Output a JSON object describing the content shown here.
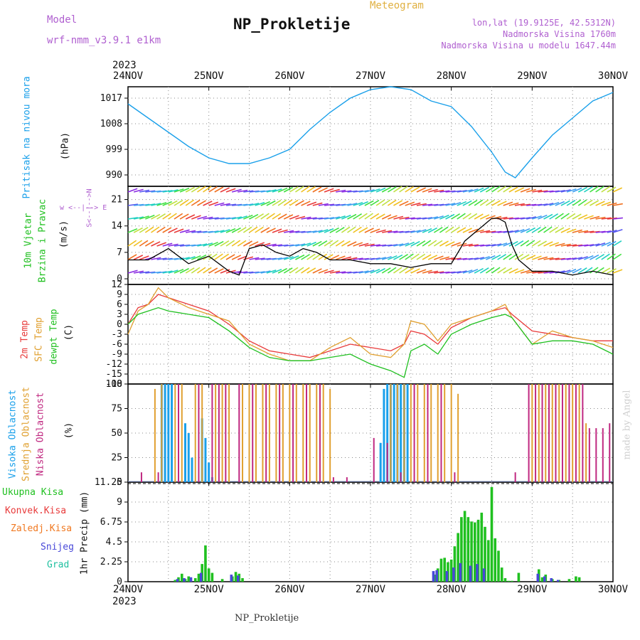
{
  "header": {
    "model_label": "Model",
    "model_version": "wrf-nmm_v3.9.1  e1km",
    "title": "NP_Prokletije",
    "meteogram": "Meteogram",
    "lonlat": "lon,lat (19.9125E, 42.5312N)",
    "elevation": "Nadmorska Visina 1760m",
    "model_elevation": "Nadmorska Visina u modelu 1647.44m"
  },
  "footer": {
    "station": "NP_Prokletije",
    "credit": "made by Angel"
  },
  "time_axis": {
    "year": "2023",
    "labels": [
      "24NOV",
      "25NOV",
      "26NOV",
      "27NOV",
      "28NOV",
      "29NOV",
      "30NOV"
    ]
  },
  "panels": {
    "pressure": {
      "label": "Pritisak na nivou mora",
      "unit": "(hPa)"
    },
    "wind": {
      "label1": "10m Vjetar",
      "label2": "Brzina i Pravac",
      "unit": "(m/s)",
      "compass": "w  <--|--> E",
      "compass_v": "S<--|-->N"
    },
    "temp": {
      "label1": "2m Temp",
      "label2": "SFC Temp",
      "label3": "dewpt Temp",
      "unit": "(C)"
    },
    "cloud": {
      "label1": "Visoka Oblacnost",
      "label2": "Srednja Oblacnost",
      "label3": "Niska Oblacnost",
      "unit": "(%)"
    },
    "precip": {
      "unit": "1hr Precip (mm)",
      "legend": [
        "Ukupna Kisa",
        "Konvek.Kisa",
        "Zaledj.Kisa",
        "Snijeg",
        "Grad"
      ]
    }
  },
  "colors": {
    "pressure": "#1aa0ea",
    "temp2m": "#e83a3a",
    "sfc": "#e0a030",
    "dew": "#20c020",
    "wind_line": "#000000",
    "gust": "#e83a3a",
    "cloud_high": "#1aa0ea",
    "cloud_mid": "#e0a030",
    "cloud_low": "#c02880",
    "rain": "#20c020",
    "conv": "#e83a3a",
    "frz": "#f07820",
    "snow": "#4848d8",
    "grad": "#20c0a0",
    "purple": "#b060d0",
    "orange": "#e0b040"
  },
  "chart_data": [
    {
      "type": "line",
      "title": "Pritisak na nivou mora",
      "ylabel": "(hPa)",
      "ylim": [
        986,
        1021
      ],
      "yticks": [
        990,
        999,
        1008,
        1017
      ],
      "series": [
        {
          "x_hours": [
            0,
            6,
            12,
            18,
            24,
            30,
            36,
            42,
            48,
            54,
            60,
            66,
            72,
            78,
            84,
            90,
            96,
            102,
            108,
            112,
            115,
            120,
            126,
            132,
            138,
            144
          ],
          "values": [
            1015,
            1010,
            1005,
            1000,
            996,
            994,
            994,
            996,
            999,
            1006,
            1012,
            1017,
            1020,
            1021,
            1020,
            1016,
            1014,
            1007,
            998,
            991,
            989,
            996,
            1004,
            1010,
            1016,
            1019
          ]
        }
      ]
    },
    {
      "type": "line",
      "title": "10m Vjetar Brzina i Pravac",
      "ylabel": "(m/s)",
      "ylim": [
        -1.5,
        24.5
      ],
      "yticks": [
        0,
        7,
        14,
        21
      ],
      "series": [
        {
          "x_hours": [
            0,
            6,
            12,
            18,
            24,
            30,
            33,
            36,
            40,
            44,
            48,
            52,
            56,
            60,
            66,
            72,
            78,
            84,
            90,
            96,
            100,
            104,
            108,
            110,
            112,
            114,
            116,
            120,
            126,
            132,
            138,
            144
          ],
          "values": [
            5,
            5,
            8,
            4,
            6,
            2,
            1,
            8,
            9,
            7,
            6,
            8,
            7,
            5,
            5,
            4,
            4,
            3,
            4,
            4,
            10,
            13,
            16,
            16,
            15,
            9,
            5,
            2,
            2,
            1,
            2,
            1
          ]
        }
      ]
    },
    {
      "type": "line",
      "title": "2m Temp / SFC Temp / dewpt Temp",
      "ylabel": "(C)",
      "ylim": [
        -18,
        12
      ],
      "yticks": [
        -18,
        -15,
        -12,
        -9,
        -6,
        -3,
        0,
        3,
        6,
        9,
        12
      ],
      "series": [
        {
          "name": "2m Temp",
          "x_hours": [
            0,
            3,
            6,
            9,
            12,
            18,
            24,
            30,
            36,
            42,
            48,
            54,
            60,
            66,
            72,
            78,
            82,
            84,
            88,
            92,
            96,
            102,
            108,
            112,
            114,
            120,
            126,
            132,
            138,
            144
          ],
          "values": [
            0,
            5,
            6,
            9,
            8,
            6,
            4,
            0,
            -5,
            -8,
            -9,
            -10,
            -8,
            -6,
            -7,
            -8,
            -6,
            -2,
            -3,
            -6,
            -1,
            2,
            4,
            5,
            3,
            -2,
            -3,
            -4,
            -5,
            -5
          ]
        },
        {
          "name": "SFC Temp",
          "x_hours": [
            0,
            3,
            6,
            9,
            12,
            18,
            24,
            30,
            36,
            42,
            48,
            54,
            60,
            66,
            72,
            78,
            82,
            84,
            88,
            92,
            96,
            102,
            108,
            112,
            114,
            120,
            126,
            132,
            138,
            144
          ],
          "values": [
            -3,
            4,
            6,
            11,
            8,
            5,
            3,
            1,
            -6,
            -9,
            -11,
            -11,
            -7,
            -4,
            -9,
            -10,
            -6,
            1,
            0,
            -5,
            0,
            2,
            4,
            6,
            2,
            -6,
            -2,
            -4,
            -5,
            -7
          ]
        },
        {
          "name": "dewpt Temp",
          "x_hours": [
            0,
            3,
            6,
            9,
            12,
            18,
            24,
            30,
            36,
            42,
            48,
            54,
            60,
            66,
            72,
            78,
            82,
            84,
            88,
            92,
            96,
            102,
            108,
            112,
            114,
            120,
            126,
            132,
            138,
            144
          ],
          "values": [
            0,
            3,
            4,
            5,
            4,
            3,
            2,
            -2,
            -7,
            -10,
            -11,
            -11,
            -10,
            -9,
            -12,
            -14,
            -16,
            -8,
            -6,
            -9,
            -3,
            0,
            2,
            3,
            2,
            -6,
            -5,
            -5,
            -6,
            -9
          ]
        }
      ]
    },
    {
      "type": "bar",
      "title": "Oblacnost",
      "ylabel": "(%)",
      "ylim": [
        0,
        100
      ],
      "yticks": [
        0,
        25,
        50,
        75,
        100
      ],
      "series": [
        {
          "name": "Visoka Oblacnost",
          "x_hours": [
            10,
            11,
            12,
            13,
            17,
            18,
            19,
            22,
            23,
            24,
            25,
            75,
            76,
            77,
            78,
            79,
            80,
            81,
            82,
            83
          ],
          "values": [
            100,
            100,
            100,
            100,
            60,
            50,
            25,
            65,
            45,
            20,
            5,
            40,
            95,
            100,
            100,
            100,
            100,
            100,
            100,
            100
          ]
        },
        {
          "name": "Srednja Oblacnost",
          "x_hours": [
            8,
            10,
            14,
            16,
            20,
            22,
            26,
            28,
            30,
            34,
            36,
            38,
            40,
            42,
            44,
            46,
            48,
            50,
            52,
            54,
            56,
            58,
            60,
            78,
            80,
            82,
            84,
            86,
            88,
            90,
            92,
            94,
            96,
            98,
            120,
            122,
            124,
            126,
            128,
            130,
            132,
            134,
            136
          ],
          "values": [
            95,
            100,
            100,
            100,
            100,
            100,
            100,
            100,
            100,
            100,
            100,
            100,
            100,
            100,
            100,
            100,
            100,
            100,
            100,
            100,
            100,
            100,
            95,
            100,
            100,
            100,
            100,
            100,
            100,
            100,
            100,
            100,
            100,
            90,
            100,
            100,
            100,
            100,
            100,
            100,
            100,
            100,
            60
          ]
        },
        {
          "name": "Niska Oblacnost",
          "x_hours": [
            4,
            9,
            15,
            21,
            25,
            27,
            29,
            33,
            37,
            41,
            45,
            49,
            53,
            57,
            61,
            65,
            73,
            77,
            81,
            85,
            89,
            93,
            97,
            115,
            119,
            121,
            123,
            125,
            127,
            129,
            131,
            133,
            135,
            137,
            139,
            141,
            143
          ],
          "values": [
            10,
            10,
            100,
            100,
            100,
            100,
            100,
            100,
            100,
            100,
            100,
            100,
            100,
            100,
            5,
            5,
            45,
            40,
            10,
            100,
            100,
            100,
            10,
            10,
            100,
            100,
            100,
            100,
            100,
            100,
            100,
            100,
            100,
            55,
            55,
            55,
            60
          ]
        }
      ]
    },
    {
      "type": "bar",
      "title": "1hr Precip",
      "ylabel": "1hr Precip (mm)",
      "ylim": [
        0,
        11.25
      ],
      "yticks": [
        0,
        2.25,
        4.5,
        6.75,
        9,
        11.25
      ],
      "series": [
        {
          "name": "Ukupna Kisa",
          "x_hours": [
            14,
            15,
            16,
            17,
            18,
            20,
            21,
            22,
            23,
            24,
            25,
            28,
            31,
            32,
            33,
            34,
            91,
            92,
            93,
            94,
            95,
            96,
            97,
            98,
            99,
            100,
            101,
            102,
            103,
            104,
            105,
            106,
            107,
            108,
            109,
            110,
            111,
            112,
            113,
            114,
            116,
            122,
            123,
            124,
            126,
            128,
            131,
            133,
            134
          ],
          "values": [
            0.2,
            0.5,
            0.9,
            0.3,
            0.6,
            0.4,
            0.9,
            2.0,
            4.1,
            1.5,
            1.0,
            0.3,
            0.6,
            1.1,
            0.9,
            0.4,
            0.8,
            1.5,
            2.6,
            2.7,
            2.2,
            2.5,
            4.0,
            5.5,
            7.3,
            8.0,
            7.3,
            6.8,
            6.7,
            7.0,
            7.8,
            6.2,
            4.7,
            10.7,
            4.9,
            3.5,
            1.6,
            0.4,
            0.1,
            0.1,
            1.0,
            1.4,
            0.5,
            0.8,
            0.3,
            0.2,
            0.3,
            0.6,
            0.5
          ]
        },
        {
          "name": "Snijeg",
          "x_hours": [
            15,
            17,
            19,
            22,
            31,
            33,
            91,
            92,
            95,
            97,
            99,
            102,
            104,
            106,
            122,
            124,
            126,
            128
          ],
          "values": [
            0.3,
            0.4,
            0.5,
            1.0,
            0.8,
            0.7,
            1.2,
            1.3,
            1.2,
            1.6,
            2.1,
            1.8,
            2.0,
            1.5,
            0.9,
            0.6,
            0.4,
            0.2
          ]
        }
      ]
    }
  ]
}
